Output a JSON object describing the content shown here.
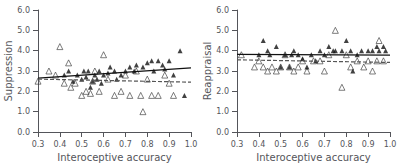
{
  "chart_data": [
    {
      "type": "scatter",
      "xlabel": "Interoceptive accuracy",
      "ylabel": "Suppression",
      "xlim": [
        0.3,
        1.0
      ],
      "ylim": [
        0.0,
        6.0
      ],
      "xticks": [
        0.3,
        0.4,
        0.5,
        0.6,
        0.7,
        0.8,
        0.9,
        {
          "value": 1.0,
          "label": "1.0"
        }
      ],
      "yticks": [
        {
          "value": 0.0,
          "label": "0.0"
        },
        {
          "value": 1.0,
          "label": "1.0"
        },
        {
          "value": 2.0,
          "label": "2.0"
        },
        {
          "value": 3.0,
          "label": "3.0"
        },
        {
          "value": 4.0,
          "label": "4.0"
        },
        {
          "value": 5.0,
          "label": "5.0"
        },
        {
          "value": 6.0,
          "label": "6.0"
        }
      ],
      "grid": false,
      "series": [
        {
          "type": "scatter",
          "marker": "triangle-open",
          "color": "#333333",
          "x": [
            0.3,
            0.35,
            0.38,
            0.4,
            0.42,
            0.44,
            0.45,
            0.47,
            0.5,
            0.52,
            0.54,
            0.55,
            0.56,
            0.58,
            0.6,
            0.62,
            0.65,
            0.68,
            0.7,
            0.72,
            0.75,
            0.77,
            0.78,
            0.8,
            0.82,
            0.85,
            0.88,
            0.9,
            0.92
          ],
          "values": [
            2.5,
            3.0,
            2.8,
            4.2,
            2.4,
            3.4,
            2.2,
            2.4,
            1.8,
            2.0,
            1.9,
            2.5,
            3.0,
            2.0,
            3.8,
            2.6,
            1.8,
            2.0,
            2.8,
            1.8,
            3.0,
            1.8,
            1.0,
            2.6,
            1.8,
            1.8,
            2.8,
            2.4,
            1.8
          ]
        },
        {
          "type": "scatter",
          "marker": "triangle",
          "color": "#111111",
          "x": [
            0.42,
            0.44,
            0.46,
            0.48,
            0.5,
            0.51,
            0.52,
            0.53,
            0.54,
            0.55,
            0.56,
            0.57,
            0.58,
            0.59,
            0.6,
            0.62,
            0.63,
            0.65,
            0.66,
            0.68,
            0.7,
            0.72,
            0.74,
            0.75,
            0.78,
            0.8,
            0.82,
            0.83,
            0.85,
            0.87,
            0.88,
            0.9,
            0.92,
            0.95,
            0.97
          ],
          "values": [
            2.8,
            3.0,
            2.5,
            2.8,
            2.6,
            3.0,
            2.7,
            3.0,
            2.2,
            2.5,
            2.8,
            2.6,
            3.0,
            2.4,
            2.8,
            2.9,
            3.2,
            3.0,
            2.6,
            2.8,
            3.0,
            3.2,
            3.0,
            3.3,
            3.2,
            3.4,
            3.5,
            3.0,
            3.5,
            3.3,
            3.1,
            3.5,
            2.8,
            4.0,
            1.8
          ]
        },
        {
          "type": "line",
          "line_style": "solid",
          "color": "#111111",
          "x": [
            0.3,
            1.0
          ],
          "values": [
            2.65,
            3.15
          ]
        },
        {
          "type": "line",
          "line_style": "dashed",
          "color": "#555555",
          "x": [
            0.3,
            1.0
          ],
          "values": [
            2.6,
            2.45
          ]
        }
      ]
    },
    {
      "type": "scatter",
      "xlabel": "Interoceptive accuracy",
      "ylabel": "Reappraisal",
      "xlim": [
        0.3,
        1.0
      ],
      "ylim": [
        0.0,
        6.0
      ],
      "xticks": [
        0.3,
        0.4,
        0.5,
        0.6,
        0.7,
        0.8,
        0.9,
        {
          "value": 1.0,
          "label": "1.0"
        }
      ],
      "yticks": [
        {
          "value": 0.0,
          "label": "0.0"
        },
        {
          "value": 1.0,
          "label": "1.0"
        },
        {
          "value": 2.0,
          "label": "2.0"
        },
        {
          "value": 3.0,
          "label": "3.0"
        },
        {
          "value": 4.0,
          "label": "4.0"
        },
        {
          "value": 5.0,
          "label": "5.0"
        },
        {
          "value": 6.0,
          "label": "6.0"
        }
      ],
      "grid": false,
      "series": [
        {
          "type": "scatter",
          "marker": "triangle-open",
          "color": "#333333",
          "x": [
            0.32,
            0.38,
            0.4,
            0.42,
            0.44,
            0.46,
            0.48,
            0.5,
            0.52,
            0.54,
            0.56,
            0.58,
            0.6,
            0.62,
            0.65,
            0.68,
            0.7,
            0.72,
            0.75,
            0.78,
            0.8,
            0.82,
            0.85,
            0.88,
            0.9,
            0.92,
            0.94,
            0.95,
            0.97
          ],
          "values": [
            3.8,
            3.2,
            3.5,
            3.2,
            3.0,
            3.2,
            3.0,
            3.2,
            3.8,
            3.2,
            3.0,
            3.2,
            3.5,
            3.0,
            3.5,
            3.5,
            3.0,
            3.8,
            5.0,
            2.2,
            3.8,
            3.2,
            3.5,
            3.2,
            3.5,
            3.0,
            3.5,
            4.5,
            3.5
          ]
        },
        {
          "type": "scatter",
          "marker": "triangle",
          "color": "#111111",
          "x": [
            0.4,
            0.42,
            0.44,
            0.45,
            0.48,
            0.5,
            0.52,
            0.54,
            0.55,
            0.56,
            0.58,
            0.6,
            0.62,
            0.64,
            0.66,
            0.68,
            0.7,
            0.72,
            0.74,
            0.75,
            0.78,
            0.8,
            0.82,
            0.83,
            0.85,
            0.87,
            0.9,
            0.92,
            0.94,
            0.95,
            0.97,
            0.98
          ],
          "values": [
            3.8,
            4.5,
            4.0,
            3.8,
            4.2,
            3.2,
            3.8,
            3.2,
            3.8,
            4.0,
            3.8,
            3.6,
            3.2,
            3.8,
            3.5,
            4.0,
            3.8,
            4.2,
            4.0,
            4.0,
            4.0,
            4.5,
            4.0,
            3.0,
            3.8,
            4.0,
            4.0,
            4.0,
            4.2,
            4.0,
            4.2,
            4.0
          ]
        },
        {
          "type": "line",
          "line_style": "solid",
          "color": "#111111",
          "x": [
            0.3,
            1.0
          ],
          "values": [
            3.82,
            3.78
          ]
        },
        {
          "type": "line",
          "line_style": "dashed",
          "color": "#555555",
          "x": [
            0.3,
            1.0
          ],
          "values": [
            3.55,
            3.42
          ]
        }
      ]
    }
  ]
}
